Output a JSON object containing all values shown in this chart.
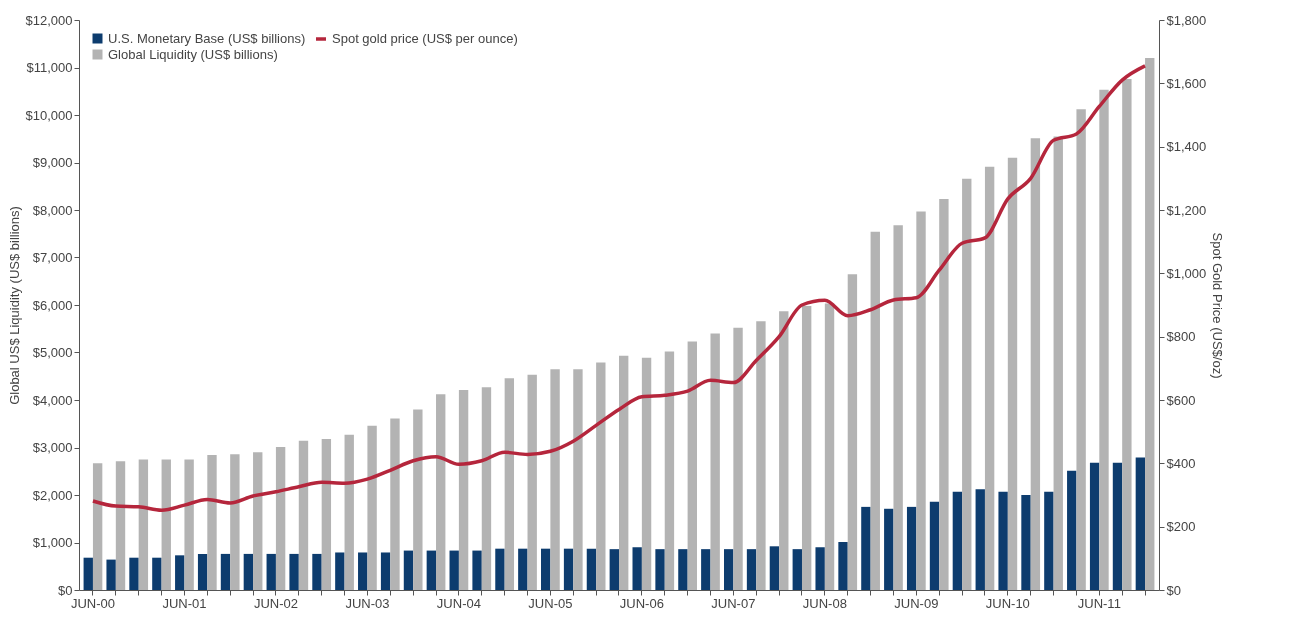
{
  "chart_data": {
    "type": "bar",
    "ylabel": "Global US$ Liquidity (US$ billions)",
    "y2label": "Spot Gold Price (US$/oz)",
    "categories": [
      "JUN-00",
      null,
      null,
      null,
      "JUN-01",
      null,
      null,
      null,
      "JUN-02",
      null,
      null,
      null,
      "JUN-03",
      null,
      null,
      null,
      "JUN-04",
      null,
      null,
      null,
      "JUN-05",
      null,
      null,
      null,
      "JUN-06",
      null,
      null,
      null,
      "JUN-07",
      null,
      null,
      null,
      "JUN-08",
      null,
      null,
      null,
      "JUN-09",
      null,
      null,
      null,
      "JUN-10",
      null,
      null,
      null,
      "JUN-11",
      null,
      null
    ],
    "series": [
      {
        "name": "U.S. Monetary Base (US$ billions)",
        "color": "#0d3c6e",
        "values": [
          680,
          640,
          680,
          680,
          730,
          760,
          760,
          760,
          760,
          760,
          760,
          790,
          790,
          790,
          830,
          830,
          830,
          830,
          870,
          870,
          870,
          870,
          870,
          860,
          900,
          860,
          860,
          860,
          860,
          860,
          920,
          860,
          900,
          1010,
          1750,
          1710,
          1750,
          1860,
          2070,
          2120,
          2070,
          2000,
          2070,
          2510,
          2680,
          2680,
          2790
        ]
      },
      {
        "name": "Global Liquidity (US$ billions)",
        "color": "#b3b3b3",
        "values": [
          2670,
          2710,
          2750,
          2750,
          2750,
          2840,
          2860,
          2900,
          3010,
          3140,
          3180,
          3270,
          3460,
          3610,
          3800,
          4120,
          4210,
          4270,
          4460,
          4530,
          4650,
          4650,
          4790,
          4930,
          4890,
          5020,
          5230,
          5400,
          5520,
          5660,
          5870,
          5980,
          6030,
          6650,
          7540,
          7680,
          7970,
          8230,
          8660,
          8910,
          9100,
          9510,
          9550,
          10120,
          10530,
          10760,
          11200
        ]
      },
      {
        "name": "Spot gold price (US$ per ounce)",
        "type": "line",
        "axis": "y2",
        "color": "#b5263c",
        "values": [
          281,
          265,
          263,
          252,
          268,
          286,
          275,
          297,
          310,
          326,
          340,
          337,
          350,
          378,
          408,
          421,
          397,
          408,
          435,
          428,
          438,
          470,
          520,
          570,
          610,
          615,
          628,
          662,
          655,
          725,
          800,
          900,
          915,
          866,
          885,
          916,
          923,
          1010,
          1095,
          1112,
          1235,
          1300,
          1420,
          1440,
          1527,
          1610,
          1655
        ]
      }
    ],
    "ylim": [
      0,
      12000
    ],
    "yticks": [
      {
        "value": 0,
        "label": "$0"
      },
      {
        "value": 1000,
        "label": "$1,000"
      },
      {
        "value": 2000,
        "label": "$2,000"
      },
      {
        "value": 3000,
        "label": "$3,000"
      },
      {
        "value": 4000,
        "label": "$4,000"
      },
      {
        "value": 5000,
        "label": "$5,000"
      },
      {
        "value": 6000,
        "label": "$6,000"
      },
      {
        "value": 7000,
        "label": "$7,000"
      },
      {
        "value": 8000,
        "label": "$8,000"
      },
      {
        "value": 9000,
        "label": "$9,000"
      },
      {
        "value": 10000,
        "label": "$10,000"
      },
      {
        "value": 11000,
        "label": "$11,000"
      },
      {
        "value": 12000,
        "label": "$12,000"
      }
    ],
    "y2lim": [
      0,
      1800
    ],
    "y2ticks": [
      {
        "value": 0,
        "label": "$0"
      },
      {
        "value": 200,
        "label": "$200"
      },
      {
        "value": 400,
        "label": "$400"
      },
      {
        "value": 600,
        "label": "$600"
      },
      {
        "value": 800,
        "label": "$800"
      },
      {
        "value": 1000,
        "label": "$1,000"
      },
      {
        "value": 1200,
        "label": "$1,200"
      },
      {
        "value": 1400,
        "label": "$1,400"
      },
      {
        "value": 1600,
        "label": "$1,600"
      },
      {
        "value": 1800,
        "label": "$1,800"
      }
    ],
    "grid": false,
    "legend": "top left",
    "marker": "none",
    "line_style": "solid"
  }
}
